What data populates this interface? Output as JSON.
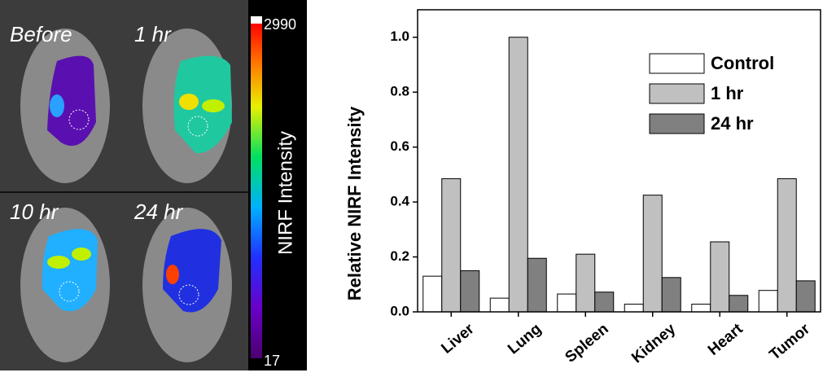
{
  "image_panel": {
    "panel_labels": [
      "Before",
      "1 hr",
      "10 hr",
      "24 hr"
    ],
    "colorbar": {
      "max_label": "2990",
      "min_label": "17",
      "title": "NIRF Intensity"
    }
  },
  "chart_data": {
    "type": "bar",
    "y_label": "Relative NIRF Intensity",
    "categories": [
      "Liver",
      "Lung",
      "Spleen",
      "Kidney",
      "Heart",
      "Tumor"
    ],
    "series": [
      {
        "name": "Control",
        "color": "#ffffff",
        "values": [
          0.13,
          0.05,
          0.065,
          0.028,
          0.028,
          0.078
        ]
      },
      {
        "name": "1 hr",
        "color": "#c0c0c0",
        "values": [
          0.485,
          1.0,
          0.21,
          0.425,
          0.255,
          0.485
        ]
      },
      {
        "name": "24 hr",
        "color": "#808080",
        "values": [
          0.15,
          0.195,
          0.072,
          0.125,
          0.06,
          0.113
        ]
      }
    ],
    "ylim": [
      0,
      1.1
    ],
    "yticks": [
      {
        "value": 0,
        "label": "0.0"
      },
      0.2,
      0.4,
      0.6,
      0.8,
      {
        "value": 1,
        "label": "1.0"
      }
    ],
    "legend": "upper right",
    "grid": false
  }
}
